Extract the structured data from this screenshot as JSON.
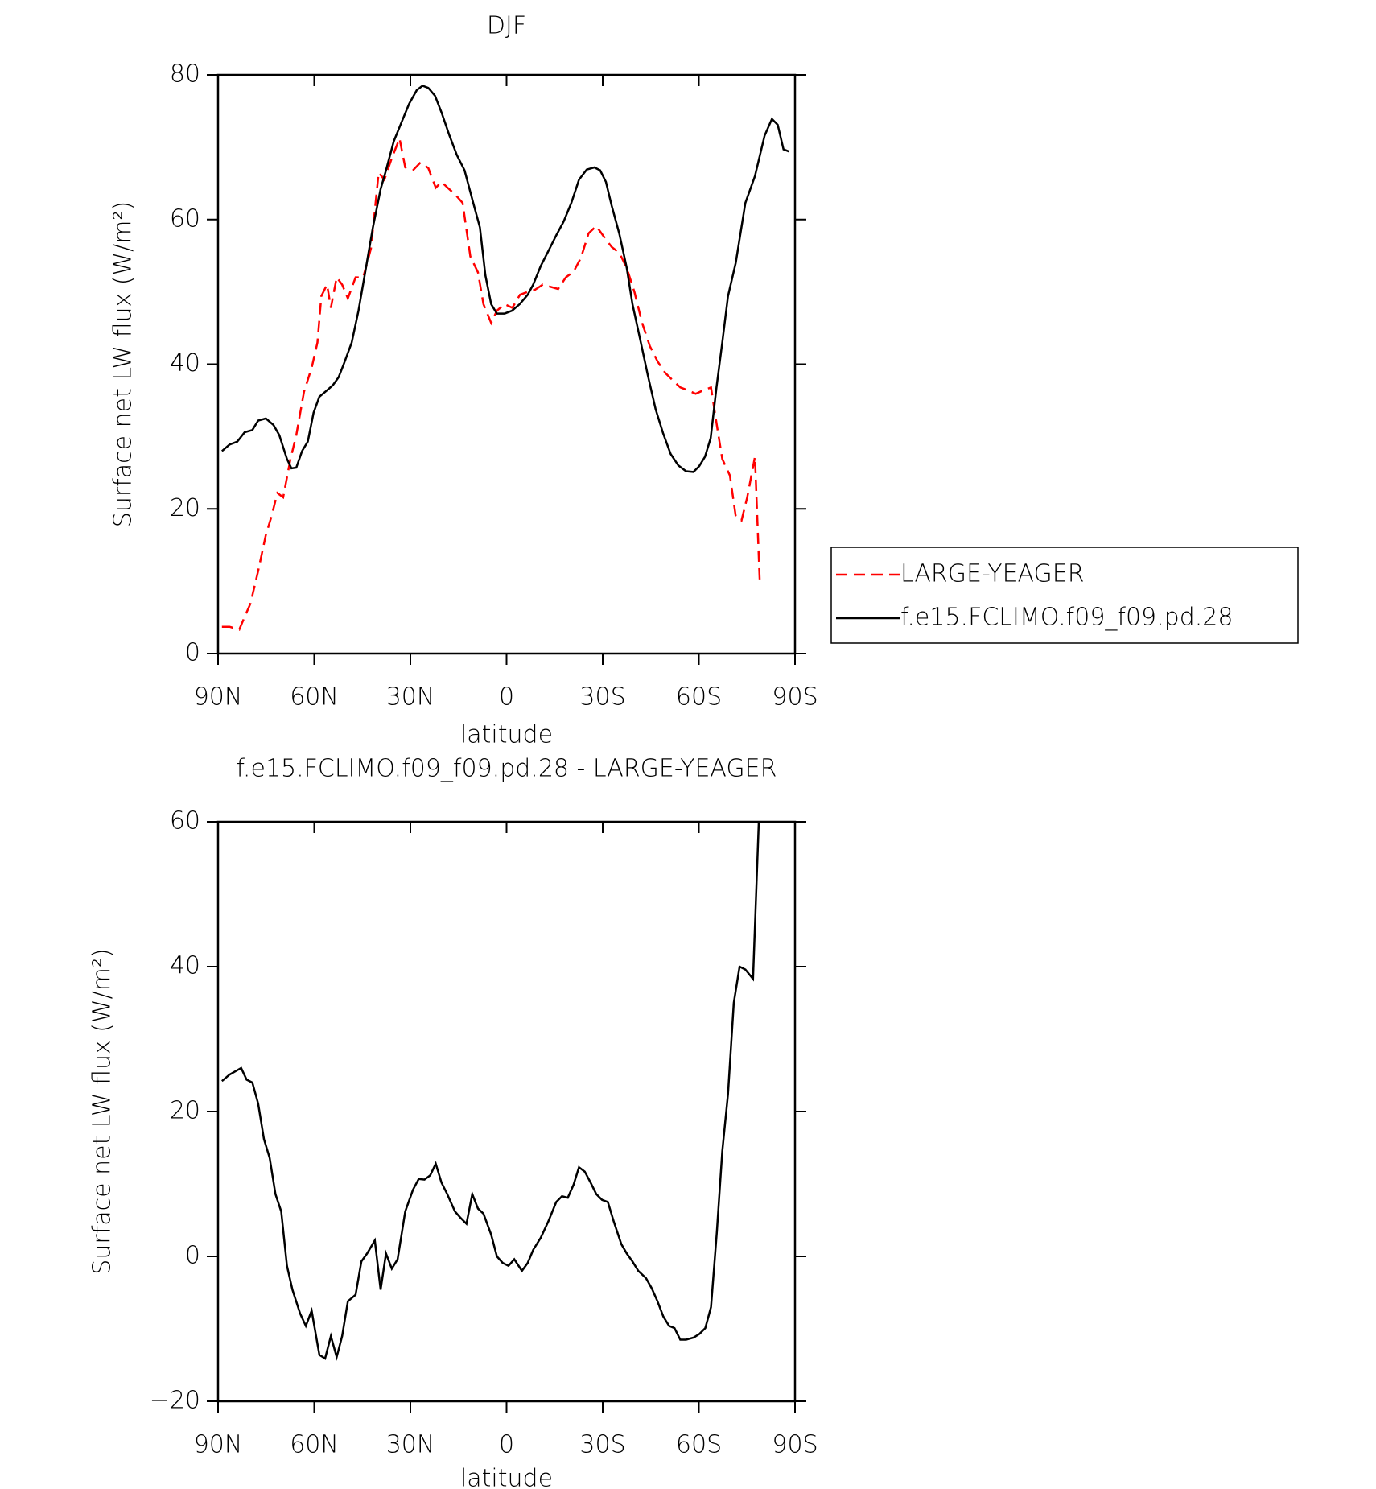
{
  "chart_data": [
    {
      "type": "line",
      "title": "DJF",
      "xlabel": "latitude",
      "ylabel": "Surface net LW flux (W/m²)",
      "xlim": [
        90,
        -90
      ],
      "xticks": [
        {
          "value": 90,
          "label": "90N"
        },
        {
          "value": 60,
          "label": "60N"
        },
        {
          "value": 30,
          "label": "30N"
        },
        0,
        {
          "value": -30,
          "label": "30S"
        },
        {
          "value": -60,
          "label": "60S"
        },
        {
          "value": -90,
          "label": "90S"
        }
      ],
      "ylim": [
        0,
        80
      ],
      "yticks": [
        0,
        20,
        40,
        60,
        80
      ],
      "legend": "outside right",
      "series": [
        {
          "name": "LARGE-YEAGER",
          "color": "#ff0000",
          "dash": true,
          "x": [
            88.8,
            86.4,
            83.4,
            81.7,
            79.9,
            77.5,
            75.1,
            73.3,
            71.5,
            69.7,
            67.4,
            65.6,
            63.2,
            60.8,
            59.0,
            57.8,
            56.0,
            54.8,
            53.0,
            51.3,
            49.5,
            47.1,
            44.7,
            42.3,
            39.9,
            38.1,
            35.8,
            33.4,
            31.6,
            29.2,
            26.8,
            24.4,
            22.1,
            20.3,
            17.9,
            16.1,
            13.7,
            11.3,
            8.9,
            7.2,
            4.8,
            3.0,
            0.6,
            -1.8,
            -4.2,
            -6.6,
            -8.9,
            -11.3,
            -13.7,
            -16.1,
            -18.5,
            -20.9,
            -23.2,
            -25.6,
            -28.0,
            -30.4,
            -32.8,
            -35.2,
            -37.5,
            -39.9,
            -42.3,
            -44.7,
            -47.1,
            -49.5,
            -51.8,
            -54.2,
            -56.6,
            -59.0,
            -61.4,
            -63.8,
            -65.6,
            -67.3,
            -69.7,
            -71.5,
            -73.3,
            -75.1,
            -77.5,
            -79.0
          ],
          "values": [
            3.7,
            3.7,
            3.3,
            5.1,
            6.9,
            11.4,
            16.4,
            19.0,
            22.2,
            21.6,
            26.9,
            30.2,
            36.2,
            39.5,
            43.0,
            49.4,
            51.0,
            47.8,
            52.0,
            51.0,
            49.1,
            52.0,
            52.0,
            56.0,
            66.5,
            65.5,
            68.5,
            71.2,
            67.2,
            66.8,
            67.9,
            67.1,
            64.4,
            65.2,
            64.2,
            63.5,
            62.3,
            54.9,
            52.7,
            48.3,
            45.7,
            47.4,
            48.3,
            47.8,
            49.6,
            50.0,
            50.3,
            51.0,
            50.7,
            50.4,
            52.0,
            52.8,
            54.7,
            58.1,
            59.1,
            57.6,
            56.2,
            55.4,
            53.3,
            50.0,
            45.7,
            42.5,
            40.4,
            38.8,
            37.8,
            36.8,
            36.4,
            35.9,
            36.4,
            36.8,
            31.6,
            26.9,
            24.6,
            19.0,
            18.4,
            21.6,
            27.2,
            9.8
          ]
        },
        {
          "name": "f.e15.FCLIMO.f09_f09.pd.28",
          "color": "#000000",
          "dash": false,
          "x": [
            88.8,
            86.4,
            84.0,
            81.7,
            79.3,
            77.5,
            75.1,
            72.7,
            70.9,
            68.5,
            67.1,
            65.6,
            63.8,
            62.0,
            60.2,
            58.4,
            56.0,
            54.2,
            52.4,
            50.7,
            48.3,
            46.2,
            44.1,
            41.7,
            39.3,
            37.6,
            35.2,
            32.8,
            30.4,
            28.0,
            26.2,
            24.4,
            22.3,
            20.2,
            17.8,
            15.5,
            13.1,
            10.7,
            8.3,
            6.6,
            4.8,
            3.0,
            0.6,
            -1.7,
            -4.1,
            -6.6,
            -8.3,
            -10.7,
            -13.1,
            -15.5,
            -17.8,
            -20.2,
            -22.6,
            -25.0,
            -27.4,
            -29.2,
            -31.0,
            -32.8,
            -35.2,
            -37.5,
            -39.3,
            -41.7,
            -44.1,
            -46.5,
            -48.8,
            -51.2,
            -53.6,
            -56.0,
            -58.3,
            -60.1,
            -61.9,
            -63.7,
            -65.5,
            -67.3,
            -69.1,
            -71.5,
            -74.5,
            -77.5,
            -80.5,
            -82.8,
            -84.6,
            -86.4,
            -88.2
          ],
          "values": [
            28.0,
            28.9,
            29.3,
            30.6,
            30.9,
            32.2,
            32.5,
            31.6,
            30.2,
            26.9,
            25.6,
            25.7,
            28.0,
            29.3,
            33.3,
            35.5,
            36.4,
            37.1,
            38.2,
            40.1,
            43.0,
            47.4,
            52.7,
            58.9,
            64.2,
            66.8,
            70.8,
            73.4,
            76.0,
            77.9,
            78.5,
            78.2,
            77.1,
            74.7,
            71.6,
            68.9,
            66.8,
            62.8,
            58.9,
            52.3,
            48.3,
            47.0,
            47.0,
            47.4,
            48.3,
            49.6,
            51.0,
            53.6,
            55.7,
            57.8,
            59.7,
            62.3,
            65.5,
            66.9,
            67.2,
            66.8,
            65.2,
            61.9,
            58.0,
            53.3,
            48.3,
            43.4,
            38.4,
            33.8,
            30.5,
            27.6,
            26.0,
            25.2,
            25.1,
            25.9,
            27.2,
            29.8,
            36.8,
            43.0,
            49.4,
            54.0,
            62.3,
            66.0,
            71.6,
            73.9,
            73.1,
            69.7,
            69.4
          ]
        }
      ]
    },
    {
      "type": "line",
      "title": "f.e15.FCLIMO.f09_f09.pd.28 - LARGE-YEAGER",
      "xlabel": "latitude",
      "ylabel": "Surface net LW flux (W/m²)",
      "xlim": [
        90,
        -90
      ],
      "xticks": [
        {
          "value": 90,
          "label": "90N"
        },
        {
          "value": 60,
          "label": "60N"
        },
        {
          "value": 30,
          "label": "30N"
        },
        0,
        {
          "value": -30,
          "label": "30S"
        },
        {
          "value": -60,
          "label": "60S"
        },
        {
          "value": -90,
          "label": "90S"
        }
      ],
      "ylim": [
        -20,
        60
      ],
      "yticks": [
        {
          "value": -20,
          "label": "−20"
        },
        0,
        20,
        40,
        60
      ],
      "series": [
        {
          "color": "#000000",
          "dash": false,
          "x": [
            88.8,
            86.4,
            84.0,
            82.8,
            81.1,
            79.3,
            77.5,
            75.7,
            73.9,
            72.1,
            70.3,
            68.5,
            66.8,
            64.4,
            62.6,
            60.8,
            58.4,
            56.6,
            54.8,
            53.0,
            51.3,
            49.5,
            47.1,
            45.3,
            43.5,
            41.1,
            39.3,
            37.6,
            35.8,
            34.0,
            31.6,
            29.2,
            27.4,
            25.6,
            23.8,
            22.1,
            20.3,
            18.5,
            16.1,
            14.3,
            12.5,
            10.7,
            8.9,
            7.2,
            4.8,
            3.0,
            1.2,
            -0.6,
            -2.4,
            -4.8,
            -6.6,
            -8.3,
            -10.7,
            -13.1,
            -15.5,
            -17.3,
            -19.1,
            -20.9,
            -22.6,
            -24.4,
            -26.2,
            -28.0,
            -29.8,
            -31.6,
            -33.4,
            -35.8,
            -37.5,
            -39.3,
            -41.1,
            -43.5,
            -45.3,
            -47.1,
            -48.9,
            -50.7,
            -52.4,
            -54.2,
            -56.0,
            -58.4,
            -60.2,
            -62.0,
            -63.8,
            -65.6,
            -67.3,
            -69.1,
            -70.9,
            -72.7,
            -74.5,
            -76.9,
            -78.7
          ],
          "values": [
            24.2,
            25.1,
            25.7,
            26.0,
            24.4,
            24.0,
            21.1,
            16.2,
            13.6,
            8.6,
            6.2,
            -1.3,
            -4.6,
            -7.9,
            -9.6,
            -7.5,
            -13.6,
            -14.1,
            -11.0,
            -13.9,
            -11.0,
            -6.2,
            -5.3,
            -0.7,
            0.4,
            2.2,
            -4.6,
            0.4,
            -1.7,
            -0.4,
            6.2,
            9.2,
            10.7,
            10.6,
            11.2,
            12.8,
            10.2,
            8.6,
            6.2,
            5.3,
            4.5,
            8.6,
            6.6,
            5.9,
            3.0,
            0.0,
            -0.9,
            -1.3,
            -0.4,
            -2.0,
            -0.9,
            0.9,
            2.6,
            4.9,
            7.5,
            8.3,
            8.1,
            9.9,
            12.3,
            11.7,
            10.2,
            8.6,
            7.8,
            7.5,
            4.9,
            1.7,
            0.4,
            -0.7,
            -2.0,
            -3.0,
            -4.4,
            -6.2,
            -8.3,
            -9.6,
            -9.9,
            -11.5,
            -11.5,
            -11.2,
            -10.7,
            -9.9,
            -7.0,
            3.3,
            14.5,
            22.4,
            35.0,
            40.0,
            39.6,
            38.3,
            60.0
          ]
        }
      ]
    }
  ]
}
